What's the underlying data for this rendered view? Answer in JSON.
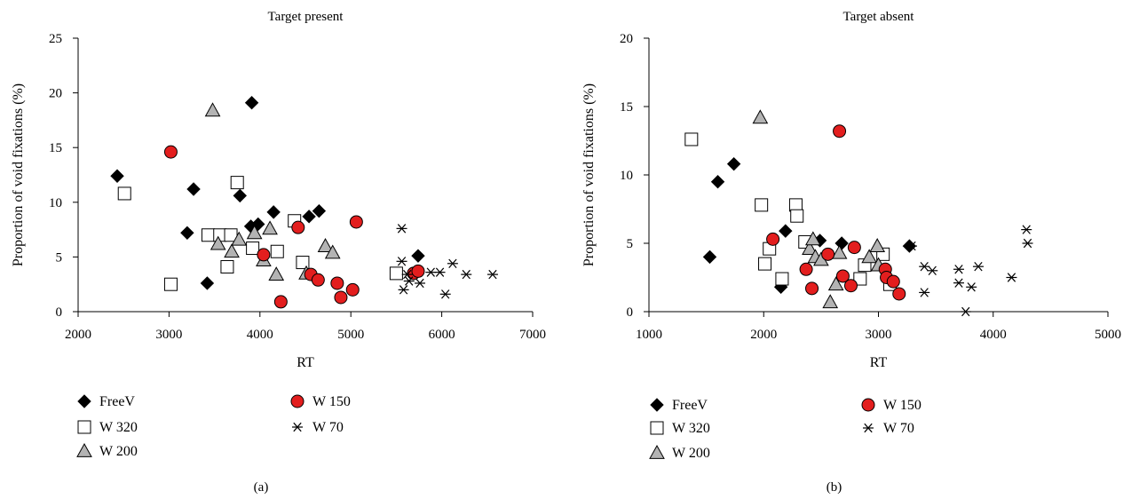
{
  "chart_data": [
    {
      "type": "scatter",
      "title": "Target present",
      "panel_label": "(a)",
      "xlabel": "RT",
      "ylabel": "Proportion of void fixations (%)",
      "xlim": [
        2000,
        7000
      ],
      "ylim": [
        0,
        25
      ],
      "xticks": [
        2000,
        3000,
        4000,
        5000,
        6000,
        7000
      ],
      "yticks": [
        0,
        5,
        10,
        15,
        20,
        25
      ],
      "grid": false,
      "legend_placement": "below",
      "legend_order": [
        "FreeV",
        "W 150",
        "W 320",
        "W 70",
        "W 200"
      ],
      "series": [
        {
          "name": "FreeV",
          "marker": "diamond",
          "fill": "#000000",
          "x": [
            2430,
            3200,
            3270,
            3420,
            3780,
            3900,
            3910,
            3980,
            4150,
            4540,
            4650,
            5740
          ],
          "y": [
            12.4,
            7.2,
            11.2,
            2.6,
            10.6,
            7.8,
            19.1,
            8.0,
            9.1,
            8.7,
            9.2,
            5.1
          ]
        },
        {
          "name": "W 320",
          "marker": "square",
          "fill": "#ffffff",
          "x": [
            2510,
            3020,
            3430,
            3560,
            3680,
            3640,
            3750,
            3920,
            4190,
            4380,
            4470,
            5500
          ],
          "y": [
            10.8,
            2.5,
            7.0,
            7.0,
            7.0,
            4.1,
            11.8,
            5.8,
            5.5,
            8.3,
            4.5,
            3.5
          ]
        },
        {
          "name": "W 200",
          "marker": "triangle",
          "fill": "#b3b3b3",
          "x": [
            3480,
            3540,
            3690,
            3770,
            3940,
            4040,
            4110,
            4180,
            4510,
            4720,
            4800
          ],
          "y": [
            18.4,
            6.2,
            5.5,
            6.6,
            7.2,
            4.7,
            7.6,
            3.4,
            3.5,
            6.0,
            5.4
          ]
        },
        {
          "name": "W 150",
          "marker": "circle",
          "fill": "#e31e1e",
          "x": [
            3020,
            4040,
            4230,
            4420,
            4560,
            4640,
            4850,
            4890,
            5020,
            5060,
            5690,
            5740
          ],
          "y": [
            14.6,
            5.2,
            0.9,
            7.7,
            3.4,
            2.9,
            2.6,
            1.3,
            2.0,
            8.2,
            3.5,
            3.7
          ]
        },
        {
          "name": "W 70",
          "marker": "asterisk",
          "fill": "none",
          "x": [
            5560,
            5560,
            5580,
            5620,
            5640,
            5760,
            5880,
            5980,
            6040,
            6120,
            6270,
            6560
          ],
          "y": [
            7.6,
            4.6,
            2.0,
            3.4,
            2.8,
            2.6,
            3.6,
            3.6,
            1.6,
            4.4,
            3.4,
            3.4
          ]
        }
      ]
    },
    {
      "type": "scatter",
      "title": "Target absent",
      "panel_label": "(b)",
      "xlabel": "RT",
      "ylabel": "Proportion of void fixations (%)",
      "xlim": [
        1000,
        5000
      ],
      "ylim": [
        0,
        20
      ],
      "xticks": [
        1000,
        2000,
        3000,
        4000,
        5000
      ],
      "yticks": [
        0,
        5,
        10,
        15,
        20
      ],
      "grid": false,
      "legend_placement": "below",
      "legend_order": [
        "FreeV",
        "W 150",
        "W 320",
        "W 70",
        "W 200"
      ],
      "series": [
        {
          "name": "FreeV",
          "marker": "diamond",
          "fill": "#000000",
          "x": [
            1530,
            1600,
            1740,
            2150,
            2190,
            2490,
            2680,
            3270
          ],
          "y": [
            4.0,
            9.5,
            10.8,
            1.8,
            5.9,
            5.2,
            5.0,
            4.8
          ]
        },
        {
          "name": "W 320",
          "marker": "square",
          "fill": "#ffffff",
          "x": [
            1370,
            1980,
            2010,
            2050,
            2160,
            2280,
            2290,
            2360,
            2840,
            2880,
            3040,
            3100
          ],
          "y": [
            12.6,
            7.8,
            3.5,
            4.6,
            2.4,
            7.8,
            7.0,
            5.1,
            2.4,
            3.4,
            4.2,
            2.0
          ]
        },
        {
          "name": "W 200",
          "marker": "triangle",
          "fill": "#b3b3b3",
          "x": [
            1970,
            2400,
            2430,
            2450,
            2500,
            2580,
            2630,
            2660,
            2920,
            2990,
            3000
          ],
          "y": [
            14.2,
            4.6,
            5.3,
            4.0,
            3.8,
            0.7,
            2.0,
            4.3,
            4.0,
            4.8,
            3.4
          ]
        },
        {
          "name": "W 150",
          "marker": "circle",
          "fill": "#e31e1e",
          "x": [
            2080,
            2370,
            2420,
            2560,
            2660,
            2690,
            2760,
            2790,
            3060,
            3070,
            3130,
            3180
          ],
          "y": [
            5.3,
            3.1,
            1.7,
            4.2,
            13.2,
            2.6,
            1.9,
            4.7,
            3.1,
            2.5,
            2.2,
            1.3
          ]
        },
        {
          "name": "W 70",
          "marker": "asterisk",
          "fill": "none",
          "x": [
            3290,
            3400,
            3400,
            3470,
            3700,
            3700,
            3760,
            3810,
            3870,
            4160,
            4290,
            4300
          ],
          "y": [
            4.8,
            3.3,
            1.4,
            3.0,
            3.1,
            2.1,
            0.0,
            1.8,
            3.3,
            2.5,
            6.0,
            5.0
          ]
        }
      ]
    }
  ]
}
